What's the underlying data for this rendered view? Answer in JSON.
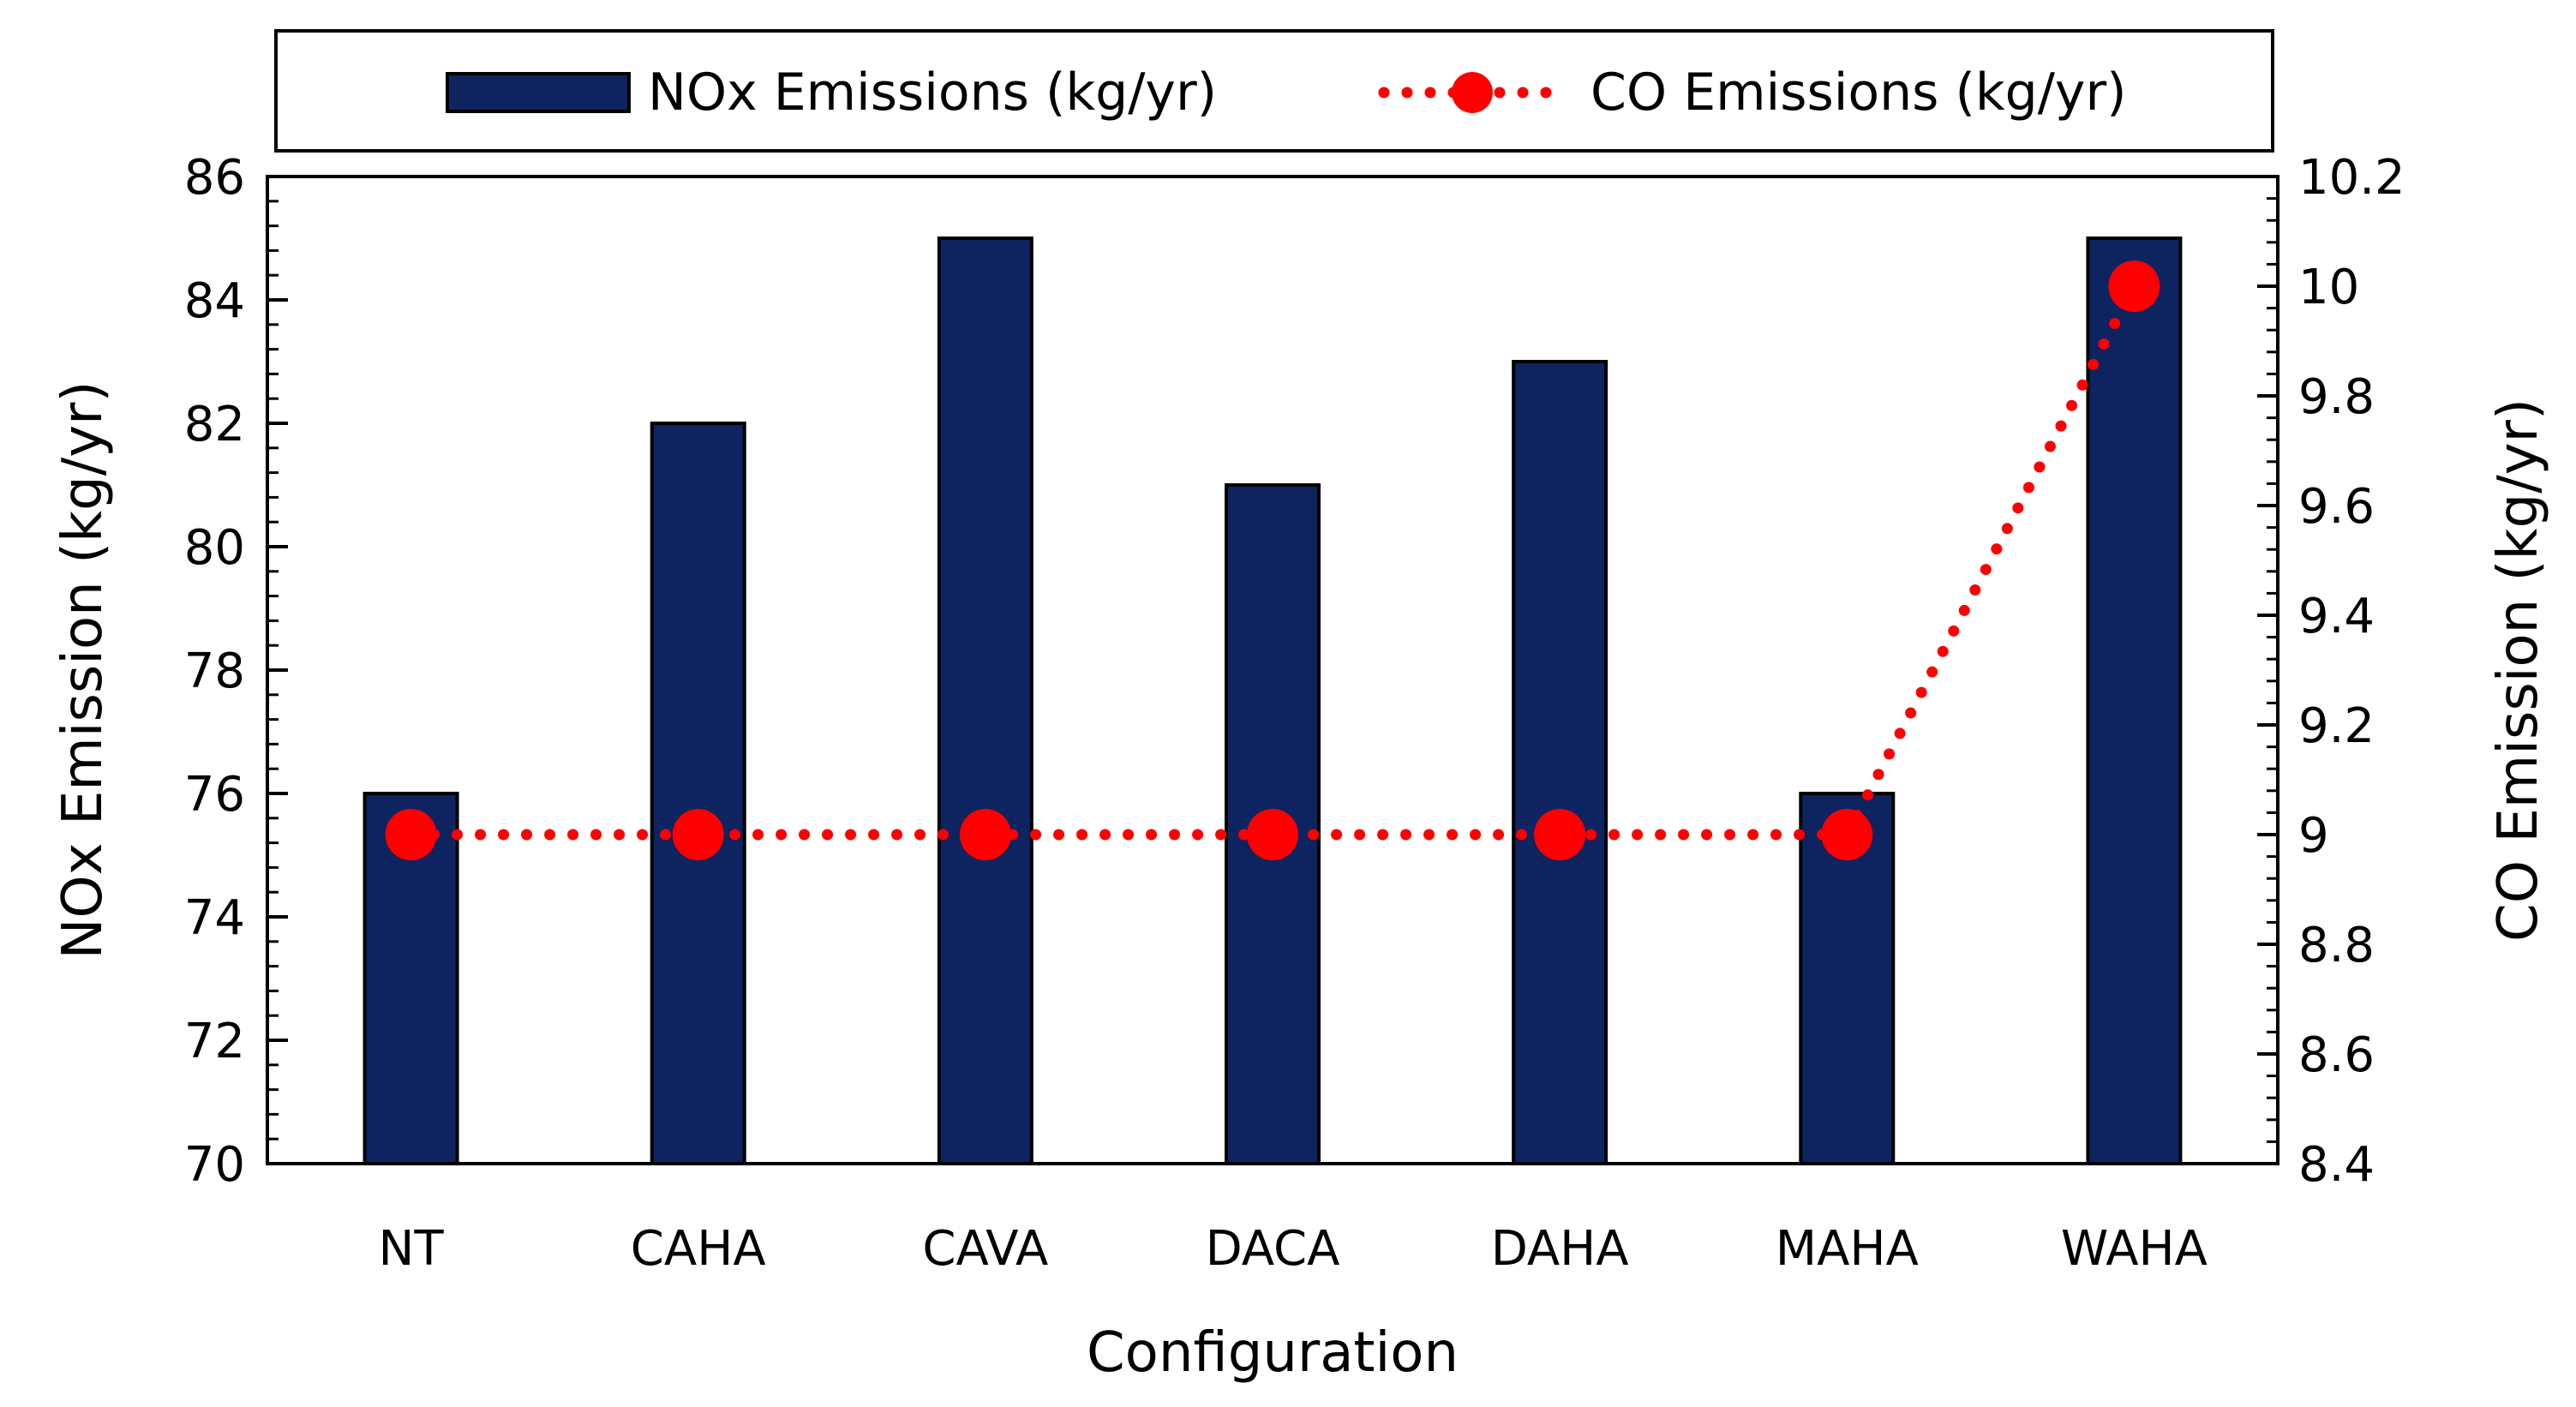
{
  "chart_data": {
    "type": "bar",
    "categories": [
      "NT",
      "CAHA",
      "CAVA",
      "DACA",
      "DAHA",
      "MAHA",
      "WAHA"
    ],
    "series": [
      {
        "name": "NOx Emissions (kg/yr)",
        "type": "bar",
        "axis": "left",
        "color": "#0d2461",
        "values": [
          76,
          82,
          85,
          81,
          83,
          76,
          85
        ]
      },
      {
        "name": "CO Emissions (kg/yr)",
        "type": "line",
        "axis": "right",
        "style": "dotted-with-markers",
        "color": "#ff0000",
        "values": [
          9,
          9,
          9,
          9,
          9,
          9,
          10
        ]
      }
    ],
    "xlabel": "Configuration",
    "ylabel": "NOx Emission (kg/yr)",
    "y2label": "CO Emission (kg/yr)",
    "ylim": [
      70,
      86
    ],
    "y2lim": [
      8.4,
      10.2
    ],
    "yticks": [
      "70",
      "72",
      "74",
      "76",
      "78",
      "80",
      "82",
      "84",
      "86"
    ],
    "y2ticks": [
      "8.4",
      "8.6",
      "8.8",
      "9",
      "9.2",
      "9.4",
      "9.6",
      "9.8",
      "10",
      "10.2"
    ],
    "legend_position": "top",
    "grid": false
  }
}
